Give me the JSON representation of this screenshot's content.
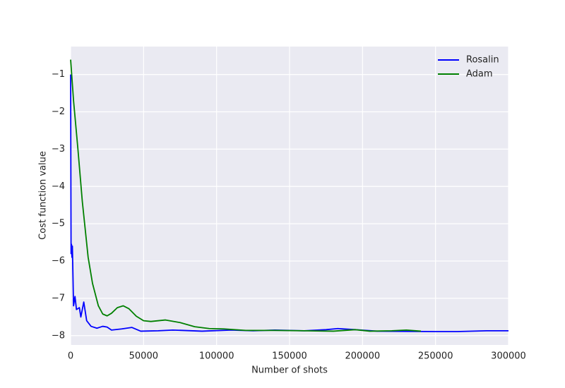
{
  "chart_data": {
    "type": "line",
    "xlabel": "Number of shots",
    "ylabel": "Cost function value",
    "xlim": [
      0,
      300000
    ],
    "ylim": [
      -8.25,
      -0.25
    ],
    "xticks": [
      0,
      50000,
      100000,
      150000,
      200000,
      250000,
      300000
    ],
    "yticks": [
      {
        "value": -8,
        "label": "−8"
      },
      {
        "value": -7,
        "label": "−7"
      },
      {
        "value": -6,
        "label": "−6"
      },
      {
        "value": -5,
        "label": "−5"
      },
      {
        "value": -4,
        "label": "−4"
      },
      {
        "value": -3,
        "label": "−3"
      },
      {
        "value": -2,
        "label": "−2"
      },
      {
        "value": -1,
        "label": "−1"
      }
    ],
    "grid": true,
    "legend": "upper right",
    "series": [
      {
        "name": "Rosalin",
        "color": "#0000ff",
        "x": [
          0,
          300,
          600,
          900,
          1200,
          2000,
          3000,
          4000,
          6000,
          7000,
          9000,
          11000,
          14000,
          18000,
          22000,
          25000,
          28000,
          35000,
          42000,
          48000,
          60000,
          70000,
          90000,
          110000,
          125000,
          140000,
          160000,
          175000,
          183000,
          195000,
          210000,
          250000,
          265000,
          285000,
          300000
        ],
        "values": [
          -1.0,
          -5.8,
          -5.55,
          -5.9,
          -5.6,
          -7.2,
          -6.95,
          -7.3,
          -7.25,
          -7.5,
          -7.1,
          -7.6,
          -7.75,
          -7.8,
          -7.75,
          -7.77,
          -7.85,
          -7.82,
          -7.78,
          -7.88,
          -7.87,
          -7.85,
          -7.88,
          -7.85,
          -7.87,
          -7.85,
          -7.87,
          -7.84,
          -7.81,
          -7.84,
          -7.88,
          -7.89,
          -7.89,
          -7.87,
          -7.87
        ]
      },
      {
        "name": "Adam",
        "color": "#008000",
        "x": [
          0,
          2000,
          5000,
          8000,
          12000,
          15000,
          19000,
          22000,
          25000,
          28000,
          32000,
          36000,
          40000,
          45000,
          50000,
          55000,
          65000,
          75000,
          85000,
          95000,
          105000,
          120000,
          140000,
          160000,
          180000,
          195000,
          205000,
          220000,
          230000,
          240000
        ],
        "values": [
          -0.6,
          -1.7,
          -3.0,
          -4.4,
          -5.9,
          -6.6,
          -7.2,
          -7.42,
          -7.47,
          -7.4,
          -7.25,
          -7.2,
          -7.28,
          -7.48,
          -7.6,
          -7.62,
          -7.58,
          -7.65,
          -7.76,
          -7.81,
          -7.82,
          -7.86,
          -7.86,
          -7.87,
          -7.88,
          -7.84,
          -7.88,
          -7.87,
          -7.85,
          -7.88
        ]
      }
    ]
  }
}
